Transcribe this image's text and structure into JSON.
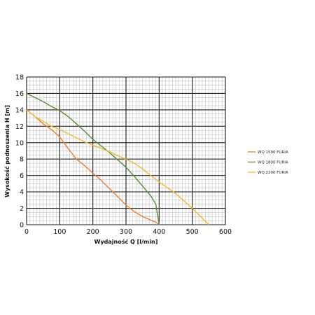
{
  "chart_data": {
    "type": "line",
    "xlabel": "Wydajność Q [l/min]",
    "ylabel": "Wysokość podnoszenia H [m]",
    "xlim": [
      0,
      600
    ],
    "ylim": [
      0,
      18
    ],
    "x_ticks": [
      "0",
      "100",
      "200",
      "300",
      "400",
      "500",
      "600"
    ],
    "y_ticks": [
      "0",
      "2",
      "4",
      "6",
      "8",
      "10",
      "12",
      "14",
      "16",
      "18"
    ],
    "grid": true,
    "legend_position": "right",
    "series": [
      {
        "name": "WQ 1500 FURIA",
        "color": "#ef7d32",
        "points": [
          [
            0,
            14
          ],
          [
            25,
            13.2
          ],
          [
            50,
            12.3
          ],
          [
            75,
            11.6
          ],
          [
            100,
            10.7
          ],
          [
            125,
            9.3
          ],
          [
            150,
            8
          ],
          [
            175,
            7.2
          ],
          [
            200,
            6.3
          ],
          [
            225,
            5.4
          ],
          [
            250,
            4.4
          ],
          [
            275,
            3.4
          ],
          [
            300,
            2.4
          ],
          [
            325,
            1.6
          ],
          [
            350,
            1
          ],
          [
            375,
            0.55
          ],
          [
            390,
            0.3
          ],
          [
            400,
            0
          ]
        ]
      },
      {
        "name": "WQ 1800 FURIA",
        "color": "#5a8a3a",
        "points": [
          [
            0,
            16
          ],
          [
            25,
            15.5
          ],
          [
            50,
            15
          ],
          [
            75,
            14.4
          ],
          [
            100,
            13.9
          ],
          [
            125,
            13.2
          ],
          [
            150,
            12.3
          ],
          [
            175,
            11.4
          ],
          [
            200,
            10.4
          ],
          [
            225,
            9.6
          ],
          [
            250,
            8.8
          ],
          [
            275,
            7.9
          ],
          [
            300,
            7
          ],
          [
            325,
            5.9
          ],
          [
            350,
            4.7
          ],
          [
            375,
            3.5
          ],
          [
            390,
            2.5
          ],
          [
            400,
            0
          ]
        ]
      },
      {
        "name": "WQ 2200 FURIA",
        "color": "#f5b92d",
        "points": [
          [
            0,
            14
          ],
          [
            25,
            13.2
          ],
          [
            50,
            12.6
          ],
          [
            75,
            12
          ],
          [
            100,
            11.6
          ],
          [
            125,
            11.1
          ],
          [
            150,
            10.6
          ],
          [
            175,
            10.1
          ],
          [
            200,
            9.7
          ],
          [
            225,
            9.3
          ],
          [
            250,
            8.9
          ],
          [
            275,
            8.4
          ],
          [
            300,
            8
          ],
          [
            325,
            7.5
          ],
          [
            350,
            6.8
          ],
          [
            375,
            6
          ],
          [
            400,
            5.2
          ],
          [
            425,
            4.5
          ],
          [
            450,
            3.8
          ],
          [
            475,
            2.9
          ],
          [
            500,
            2
          ],
          [
            525,
            1
          ],
          [
            550,
            0
          ]
        ]
      }
    ]
  }
}
